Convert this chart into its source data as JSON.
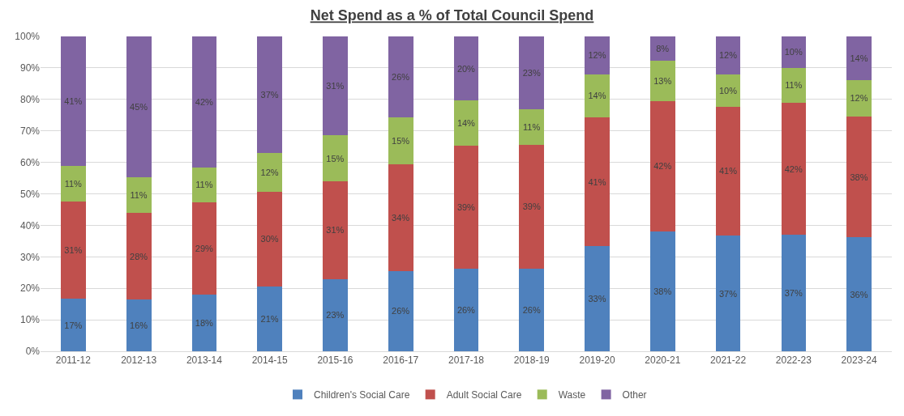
{
  "chart_data": {
    "type": "bar",
    "title": "Net Spend as a % of Total Council Spend",
    "stacked": true,
    "categories": [
      "2011-12",
      "2012-13",
      "2013-14",
      "2014-15",
      "2015-16",
      "2016-17",
      "2017-18",
      "2018-19",
      "2019-20",
      "2020-21",
      "2021-22",
      "2022-23",
      "2023-24"
    ],
    "series": [
      {
        "name": "Children's Social Care",
        "color": "#4f81bd",
        "values": [
          16.7,
          16.4,
          18.1,
          20.6,
          23.0,
          25.5,
          26.2,
          26.3,
          33.3,
          38.0,
          36.7,
          36.9,
          36.2
        ],
        "value_labels": [
          "17%",
          "16%",
          "18%",
          "21%",
          "23%",
          "26%",
          "26%",
          "26%",
          "33%",
          "38%",
          "37%",
          "37%",
          "36%"
        ]
      },
      {
        "name": "Adult Social Care",
        "color": "#c0504d",
        "values": [
          30.9,
          27.6,
          29.3,
          30.1,
          31.0,
          33.8,
          39.0,
          39.2,
          41.1,
          41.5,
          41.0,
          42.0,
          38.3
        ],
        "value_labels": [
          "31%",
          "28%",
          "29%",
          "30%",
          "31%",
          "34%",
          "39%",
          "39%",
          "41%",
          "42%",
          "41%",
          "42%",
          "38%"
        ]
      },
      {
        "name": "Waste",
        "color": "#9bbb59",
        "values": [
          11.3,
          11.3,
          11.0,
          12.2,
          14.6,
          14.9,
          14.4,
          11.3,
          13.6,
          12.8,
          10.3,
          11.1,
          11.7
        ],
        "value_labels": [
          "11%",
          "11%",
          "11%",
          "12%",
          "15%",
          "15%",
          "14%",
          "11%",
          "14%",
          "13%",
          "10%",
          "11%",
          "12%"
        ]
      },
      {
        "name": "Other",
        "color": "#8064a2",
        "values": [
          41.1,
          44.7,
          41.6,
          37.1,
          31.4,
          25.8,
          20.4,
          23.2,
          12.0,
          7.7,
          12.0,
          10.0,
          13.8
        ],
        "value_labels": [
          "41%",
          "45%",
          "42%",
          "37%",
          "31%",
          "26%",
          "20%",
          "23%",
          "12%",
          "8%",
          "12%",
          "10%",
          "14%"
        ]
      }
    ],
    "ylim": [
      0,
      100
    ],
    "yticks": [
      {
        "value": 0,
        "label": "0%"
      },
      {
        "value": 10,
        "label": "10%"
      },
      {
        "value": 20,
        "label": "20%"
      },
      {
        "value": 30,
        "label": "30%"
      },
      {
        "value": 40,
        "label": "40%"
      },
      {
        "value": 50,
        "label": "50%"
      },
      {
        "value": 60,
        "label": "60%"
      },
      {
        "value": 70,
        "label": "70%"
      },
      {
        "value": 80,
        "label": "80%"
      },
      {
        "value": 90,
        "label": "90%"
      },
      {
        "value": 100,
        "label": "100%"
      }
    ],
    "grid": "y",
    "legend": "bottom"
  }
}
